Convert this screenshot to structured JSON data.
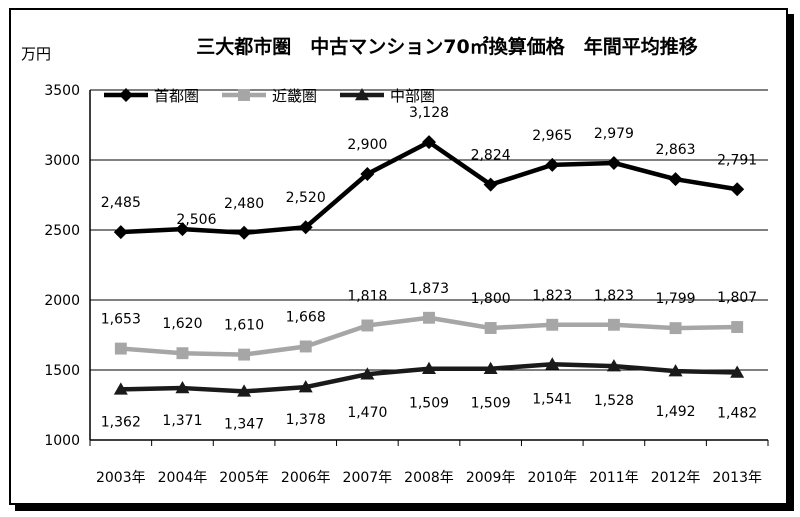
{
  "chart_data": {
    "type": "line",
    "title": "三大都市圏　中古マンション70㎡換算価格　年間平均推移",
    "ylabel": "万円",
    "xlabel": "",
    "ylim": [
      1000,
      3500
    ],
    "yticks": [
      "1000",
      "1500",
      "2000",
      "2500",
      "3000",
      "3500"
    ],
    "categories": [
      "2003年",
      "2004年",
      "2005年",
      "2006年",
      "2007年",
      "2008年",
      "2009年",
      "2010年",
      "2011年",
      "2012年",
      "2013年"
    ],
    "grid": true,
    "legend": "top-left",
    "series": [
      {
        "name": "首都圏",
        "color": "#000000",
        "marker": "diamond",
        "values": [
          2485,
          2506,
          2480,
          2520,
          2900,
          3128,
          2824,
          2965,
          2979,
          2863,
          2791
        ],
        "labels": [
          "2,485",
          "2,506",
          "2,480",
          "2,520",
          "2,900",
          "3,128",
          "2,824",
          "2,965",
          "2,979",
          "2,863",
          "2,791"
        ]
      },
      {
        "name": "近畿圏",
        "color": "#a6a6a6",
        "marker": "square",
        "values": [
          1653,
          1620,
          1610,
          1668,
          1818,
          1873,
          1800,
          1823,
          1823,
          1799,
          1807
        ],
        "labels": [
          "1,653",
          "1,620",
          "1,610",
          "1,668",
          "1,818",
          "1,873",
          "1,800",
          "1,823",
          "1,823",
          "1,799",
          "1,807"
        ]
      },
      {
        "name": "中部圏",
        "color": "#1a1a1a",
        "marker": "triangle",
        "values": [
          1362,
          1371,
          1347,
          1378,
          1470,
          1509,
          1509,
          1541,
          1528,
          1492,
          1482
        ],
        "labels": [
          "1,362",
          "1,371",
          "1,347",
          "1,378",
          "1,470",
          "1,509",
          "1,509",
          "1,541",
          "1,528",
          "1,492",
          "1,482"
        ]
      }
    ]
  }
}
